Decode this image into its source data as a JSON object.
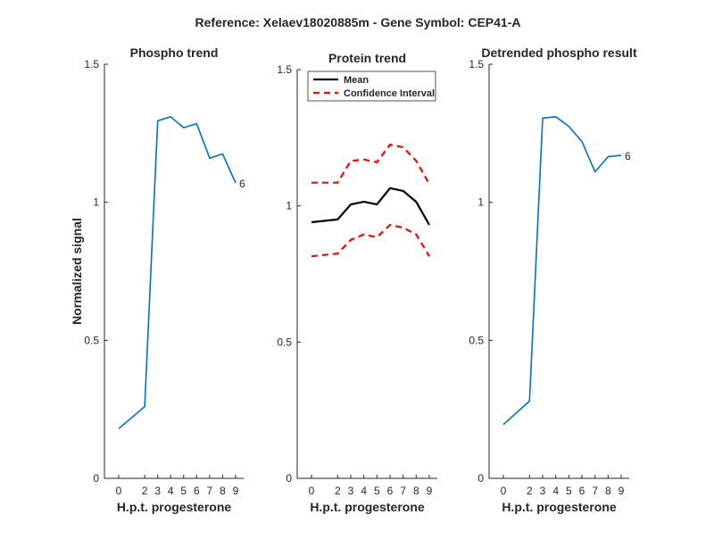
{
  "figure_title": "Reference:  Xelaev18020885m - Gene Symbol:  CEP41-A",
  "colors": {
    "phospho": "#0072BD",
    "mean": "#000000",
    "ci": "#FF0000",
    "axis": "#262626"
  },
  "chart_data": [
    {
      "type": "line",
      "title": "Phospho trend",
      "xlabel": "H.p.t. progesterone",
      "ylabel": "Normalized signal",
      "x": [
        0,
        2,
        3,
        4,
        5,
        6,
        7,
        8,
        9
      ],
      "xticks": [
        "0",
        "2",
        "3",
        "4",
        "5",
        "6",
        "7",
        "8",
        "9"
      ],
      "yticks": [
        "0",
        "0.5",
        "1",
        "1.5"
      ],
      "ylim": [
        0,
        1.5
      ],
      "series": [
        {
          "values": [
            0.18,
            0.26,
            1.295,
            1.31,
            1.27,
            1.285,
            1.16,
            1.175,
            1.07
          ],
          "end_label": "6"
        }
      ]
    },
    {
      "type": "line",
      "title": "Protein trend",
      "xlabel": "H.p.t. progesterone",
      "ylabel": "",
      "x": [
        0,
        2,
        3,
        4,
        5,
        6,
        7,
        8,
        9
      ],
      "xticks": [
        "0",
        "2",
        "3",
        "4",
        "5",
        "6",
        "7",
        "8",
        "9"
      ],
      "yticks": [
        "0",
        "0.5",
        "1",
        "1.5"
      ],
      "ylim": [
        0,
        1.5
      ],
      "legend": {
        "placement": "top-left",
        "entries": [
          "Mean",
          "Confidence Interval"
        ]
      },
      "series": [
        {
          "name": "Mean",
          "values": [
            0.94,
            0.95,
            1.005,
            1.015,
            1.005,
            1.065,
            1.055,
            1.015,
            0.93
          ]
        },
        {
          "name": "Confidence Interval",
          "values": [
            1.085,
            1.085,
            1.165,
            1.17,
            1.16,
            1.225,
            1.215,
            1.165,
            1.08
          ]
        },
        {
          "name": "Confidence Interval",
          "values": [
            0.815,
            0.825,
            0.875,
            0.895,
            0.885,
            0.93,
            0.92,
            0.895,
            0.815
          ]
        }
      ]
    },
    {
      "type": "line",
      "title": "Detrended phospho result",
      "xlabel": "H.p.t. progesterone",
      "ylabel": "",
      "x": [
        0,
        2,
        3,
        4,
        5,
        6,
        7,
        8,
        9
      ],
      "xticks": [
        "0",
        "2",
        "3",
        "4",
        "5",
        "6",
        "7",
        "8",
        "9"
      ],
      "yticks": [
        "0",
        "0.5",
        "1",
        "1.5"
      ],
      "ylim": [
        0,
        1.5
      ],
      "series": [
        {
          "values": [
            0.195,
            0.28,
            1.305,
            1.31,
            1.275,
            1.22,
            1.11,
            1.165,
            1.17
          ],
          "end_label": "6"
        }
      ]
    }
  ]
}
